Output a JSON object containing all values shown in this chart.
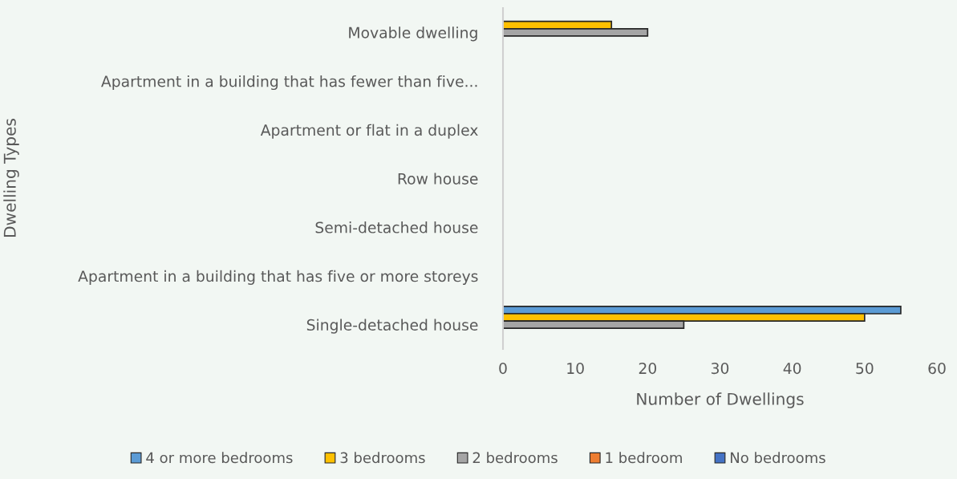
{
  "chart_data": {
    "type": "bar",
    "orientation": "horizontal",
    "xlabel": "Number of Dwellings",
    "ylabel": "Dwelling Types",
    "categories": [
      "Movable dwelling",
      "Apartment in a building that has fewer than five...",
      "Apartment or flat in a duplex",
      "Row house",
      "Semi-detached house",
      "Apartment in a building that has five or more storeys",
      "Single-detached house"
    ],
    "series": [
      {
        "name": "4 or more bedrooms",
        "color": "#5b9bd5",
        "values": [
          null,
          null,
          null,
          null,
          null,
          null,
          55
        ]
      },
      {
        "name": "3 bedrooms",
        "color": "#ffc000",
        "values": [
          15,
          null,
          null,
          null,
          null,
          null,
          50
        ]
      },
      {
        "name": "2 bedrooms",
        "color": "#a5a5a5",
        "values": [
          20,
          null,
          null,
          null,
          null,
          null,
          25
        ]
      },
      {
        "name": "1 bedroom",
        "color": "#ed7d31",
        "values": [
          null,
          null,
          null,
          null,
          null,
          null,
          null
        ]
      },
      {
        "name": "No bedrooms",
        "color": "#4472c4",
        "values": [
          null,
          null,
          null,
          null,
          null,
          null,
          null
        ]
      }
    ],
    "xlim": [
      0,
      60
    ],
    "xticks": [
      0,
      10,
      20,
      30,
      40,
      50,
      60
    ],
    "grid": false,
    "legend": "bottom"
  }
}
